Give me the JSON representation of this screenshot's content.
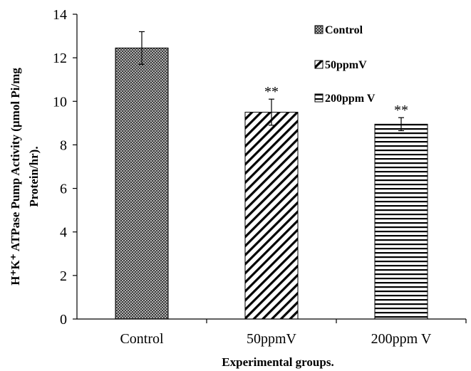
{
  "chart_data": {
    "type": "bar",
    "title": "",
    "categories": [
      "Control",
      "50ppmV",
      "200ppm V"
    ],
    "values": [
      12.45,
      9.5,
      8.95
    ],
    "errors": [
      0.75,
      0.6,
      0.3
    ],
    "annotations": [
      "",
      "**",
      "**"
    ],
    "patterns": [
      "crosshatch",
      "diagonal",
      "horizontal"
    ],
    "xlabel": "Experimental groups.",
    "ylabel_line1": "H⁺K⁺ ATPase Pump  Activity (µmol Pi/mg",
    "ylabel_line2": "Protein/hr).",
    "ylim": [
      0,
      14
    ],
    "yticks": [
      0,
      2,
      4,
      6,
      8,
      10,
      12,
      14
    ],
    "grid": false,
    "legend": {
      "placement": "top-right",
      "entries": [
        "Control",
        "50ppmV",
        "200ppm V"
      ]
    }
  }
}
